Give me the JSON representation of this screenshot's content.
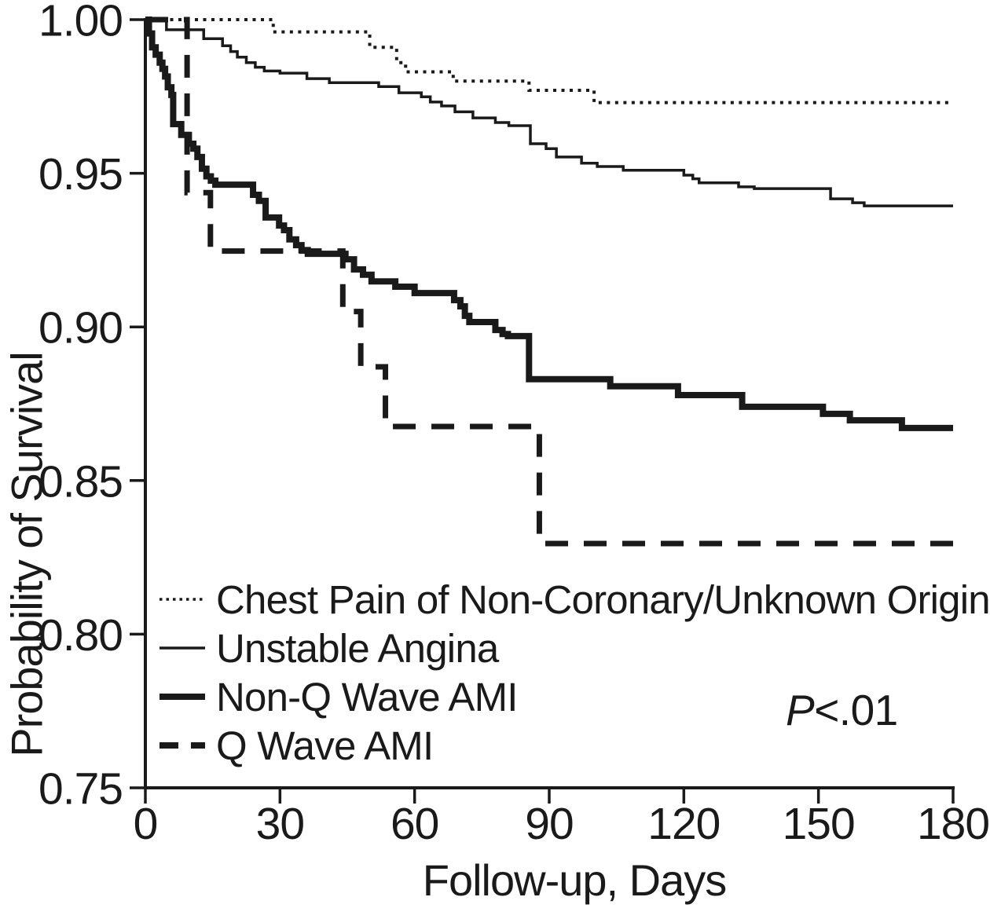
{
  "colors": {
    "curve": "#1a1a1a",
    "background": "#ffffff"
  },
  "annotation": {
    "prefix": "P",
    "rest": "<.01",
    "full": "P<.01"
  },
  "chart_data": {
    "type": "line",
    "subtype": "kaplan-meier-step",
    "title": "",
    "xlabel": "Follow-up, Days",
    "ylabel": "Probability of Survival",
    "xlim": [
      0,
      180
    ],
    "ylim": [
      0.75,
      1.0
    ],
    "grid": false,
    "legend_position": "lower-left-inside",
    "annotation_text": "P<.01",
    "xticks": {
      "values": [
        0,
        30,
        60,
        90,
        120,
        150,
        180
      ],
      "labels": [
        "0",
        "30",
        "60",
        "90",
        "120",
        "150",
        "180"
      ]
    },
    "yticks": {
      "values": [
        1.0,
        0.95,
        0.9,
        0.85,
        0.8,
        0.75
      ],
      "labels": [
        "1.00",
        "0.95",
        "0.90",
        "0.85",
        "0.80",
        "0.75"
      ]
    },
    "series": [
      {
        "name": "Chest Pain of Non-Coronary/Unknown Origin",
        "style": "dotted",
        "points": [
          [
            0,
            1.0
          ],
          [
            28.5,
            0.996
          ],
          [
            50,
            0.991
          ],
          [
            56,
            0.986
          ],
          [
            58,
            0.983
          ],
          [
            68.6,
            0.98
          ],
          [
            85.5,
            0.977
          ],
          [
            100,
            0.973
          ],
          [
            180,
            0.973
          ]
        ]
      },
      {
        "name": "Unstable Angina",
        "style": "thin-solid",
        "points": [
          [
            0,
            1.0
          ],
          [
            4.7,
            0.9967
          ],
          [
            13,
            0.9938
          ],
          [
            17.2,
            0.9915
          ],
          [
            19,
            0.9896
          ],
          [
            20.5,
            0.9878
          ],
          [
            22.5,
            0.986
          ],
          [
            24.5,
            0.9845
          ],
          [
            26.5,
            0.9833
          ],
          [
            30,
            0.9826
          ],
          [
            36,
            0.9808
          ],
          [
            41,
            0.9795
          ],
          [
            52,
            0.9782
          ],
          [
            56.5,
            0.9762
          ],
          [
            61.5,
            0.9749
          ],
          [
            63.5,
            0.9732
          ],
          [
            66,
            0.9719
          ],
          [
            69,
            0.97
          ],
          [
            73,
            0.968
          ],
          [
            78,
            0.9665
          ],
          [
            81,
            0.9655
          ],
          [
            85.8,
            0.9596
          ],
          [
            89.3,
            0.958
          ],
          [
            91.6,
            0.9553
          ],
          [
            97.2,
            0.9533
          ],
          [
            100.7,
            0.9522
          ],
          [
            106.5,
            0.951
          ],
          [
            120,
            0.9494
          ],
          [
            122,
            0.9482
          ],
          [
            123.4,
            0.9469
          ],
          [
            132.2,
            0.9456
          ],
          [
            135.7,
            0.945
          ],
          [
            152.7,
            0.9417
          ],
          [
            157.6,
            0.9404
          ],
          [
            160.2,
            0.9394
          ],
          [
            180,
            0.9394
          ]
        ]
      },
      {
        "name": "Non-Q Wave AMI",
        "style": "thick-solid",
        "points": [
          [
            0,
            1.0
          ],
          [
            0.8,
            0.9955
          ],
          [
            1.5,
            0.991
          ],
          [
            2.3,
            0.9886
          ],
          [
            3.2,
            0.986
          ],
          [
            3.8,
            0.984
          ],
          [
            4.4,
            0.9815
          ],
          [
            5,
            0.978
          ],
          [
            5.8,
            0.9755
          ],
          [
            6.2,
            0.966
          ],
          [
            8,
            0.9625
          ],
          [
            9.7,
            0.9596
          ],
          [
            10.7,
            0.958
          ],
          [
            11.6,
            0.9553
          ],
          [
            12.6,
            0.9515
          ],
          [
            13.6,
            0.949
          ],
          [
            14.6,
            0.9476
          ],
          [
            15.6,
            0.9463
          ],
          [
            24,
            0.943
          ],
          [
            25.3,
            0.941
          ],
          [
            26.8,
            0.9356
          ],
          [
            29.8,
            0.933
          ],
          [
            30.9,
            0.9315
          ],
          [
            32.1,
            0.9285
          ],
          [
            33.6,
            0.9266
          ],
          [
            34.8,
            0.925
          ],
          [
            36.2,
            0.9238
          ],
          [
            44.6,
            0.922
          ],
          [
            46.5,
            0.9187
          ],
          [
            48.5,
            0.917
          ],
          [
            50.4,
            0.9148
          ],
          [
            55.7,
            0.9131
          ],
          [
            60,
            0.911
          ],
          [
            68.8,
            0.9087
          ],
          [
            70.2,
            0.9067
          ],
          [
            71.2,
            0.9036
          ],
          [
            72.2,
            0.9016
          ],
          [
            78,
            0.899
          ],
          [
            79.6,
            0.8977
          ],
          [
            80.8,
            0.897
          ],
          [
            85.5,
            0.883
          ],
          [
            103.6,
            0.8807
          ],
          [
            118.7,
            0.8778
          ],
          [
            133,
            0.874
          ],
          [
            151,
            0.8717
          ],
          [
            157,
            0.8696
          ],
          [
            168.6,
            0.8671
          ],
          [
            180,
            0.8671
          ]
        ]
      },
      {
        "name": "Q Wave AMI",
        "style": "dashed",
        "points": [
          [
            0,
            1.0
          ],
          [
            9.3,
            0.9437
          ],
          [
            14.5,
            0.9247
          ],
          [
            44,
            0.905
          ],
          [
            48,
            0.887
          ],
          [
            53.5,
            0.8676
          ],
          [
            87.8,
            0.8295
          ],
          [
            180,
            0.8295
          ]
        ]
      }
    ]
  }
}
